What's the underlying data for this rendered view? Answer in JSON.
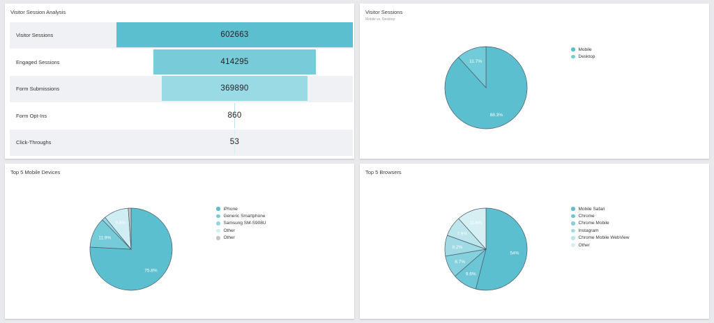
{
  "chart_data": [
    {
      "type": "bar",
      "title": "Visitor Session Analysis",
      "categories": [
        "Visitor Sessions",
        "Engaged Sessions",
        "Form Submissions",
        "Form Opt-Ins",
        "Click-Throughs"
      ],
      "values": [
        602663,
        414295,
        369890,
        860,
        53
      ],
      "colors": [
        "#5bbfcf",
        "#78ccda",
        "#99dae4",
        "#b8e6ed",
        "#d2eff3"
      ]
    },
    {
      "type": "pie",
      "title": "Visitor Sessions",
      "subtitle": "Mobile vs. Desktop",
      "categories": [
        "Mobile",
        "Desktop"
      ],
      "values": [
        88.3,
        11.7
      ],
      "labels": [
        "88.3%",
        "11.7%"
      ],
      "colors": [
        "#5bbfcf",
        "#72cbd9"
      ]
    },
    {
      "type": "pie",
      "title": "Top 5 Mobile Devices",
      "categories": [
        "iPhone",
        "Generic Smartphone",
        "Samsung SM-S908U",
        "Other",
        "Other"
      ],
      "values": [
        75.8,
        11.9,
        1.4,
        9.8,
        1.1
      ],
      "labels": [
        "75.8%",
        "11.9%",
        "",
        "9.8%",
        ""
      ],
      "colors": [
        "#5bbfcf",
        "#76cbd9",
        "#93d6e1",
        "#cfedf2",
        "#c4c4c4"
      ]
    },
    {
      "type": "pie",
      "title": "Top 5 Browsers",
      "categories": [
        "Mobile Safari",
        "Chrome",
        "Chrome Mobile",
        "Instagram",
        "Chrome Mobile WebView",
        "Other"
      ],
      "values": [
        54,
        9.6,
        8.7,
        8.2,
        7.9,
        11.6
      ],
      "labels": [
        "54%",
        "9.6%",
        "8.7%",
        "8.2%",
        "7.9%",
        "11.6%"
      ],
      "colors": [
        "#5bbfcf",
        "#6cc6d5",
        "#85d0dd",
        "#a0dae4",
        "#bce5ec",
        "#d6eff3"
      ]
    }
  ]
}
